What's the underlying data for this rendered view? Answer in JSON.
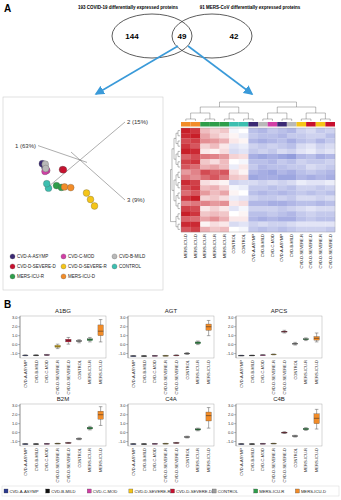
{
  "chart_data": [
    {
      "type": "venn",
      "panel": "A",
      "sets": [
        "193 COVID-19 differentially expressed proteins",
        "91 MERS-CoV differentially expressed proteins"
      ],
      "values": [
        144,
        49,
        42
      ]
    },
    {
      "type": "scatter3d",
      "axis_labels": [
        "1 (63%)",
        "2 (15%)",
        "3 (9%)"
      ],
      "xlim": [
        -0.2,
        1.2
      ],
      "ylim": [
        -0.7,
        1
      ],
      "zlim": [
        -0.2,
        1
      ],
      "tick_labels": false,
      "legend": "bottom",
      "series": [
        {
          "name": "CVD-A-ASYMP",
          "color": "#3b2a74",
          "x": [
            1.0,
            1.05
          ],
          "y": [
            -0.25,
            -0.22
          ],
          "z": [
            0.25,
            0.2
          ]
        },
        {
          "name": "CVD-C-MOD",
          "color": "#d23fa6",
          "x": [
            0.95,
            1.0
          ],
          "y": [
            -0.28,
            -0.3
          ],
          "z": [
            0.28,
            0.3
          ]
        },
        {
          "name": "CVD-B-MILD",
          "color": "#b9b9b9",
          "x": [
            1.02,
            0.98
          ],
          "y": [
            -0.2,
            -0.26
          ],
          "z": [
            0.22,
            0.26
          ]
        },
        {
          "name": "CVD-D-SEVERE-D",
          "color": "#c8102e",
          "x": [
            0.5,
            0.55
          ],
          "y": [
            -0.2,
            -0.18
          ],
          "z": [
            0.2,
            0.24
          ]
        },
        {
          "name": "CVD-D-SEVERE-R",
          "color": "#f5c518",
          "x": [
            0.2,
            0.1,
            0.15
          ],
          "y": [
            -0.3,
            -0.4,
            -0.35
          ],
          "z": [
            0.6,
            0.8,
            0.7
          ]
        },
        {
          "name": "CONTROL",
          "color": "#3cbfb0",
          "x": [
            0.9,
            0.95
          ],
          "y": [
            -0.5,
            -0.45
          ],
          "z": [
            0.5,
            0.45
          ]
        },
        {
          "name": "MERS-ICU-R",
          "color": "#2e9e4a",
          "x": [
            0.8,
            0.75
          ],
          "y": [
            -0.4,
            -0.38
          ],
          "z": [
            0.5,
            0.55
          ]
        },
        {
          "name": "MERS-ICU-D",
          "color": "#f28c28",
          "x": [
            0.7,
            0.65
          ],
          "y": [
            -0.35,
            -0.3
          ],
          "z": [
            0.55,
            0.6
          ]
        }
      ]
    },
    {
      "type": "heatmap",
      "tick_labels": "x",
      "zlim": [
        -2,
        2
      ],
      "categories": [
        "MERS-ICU-D",
        "MERS-ICU-D",
        "MERS-ICU-R",
        "MERS-ICU-R",
        "MERS-ICU-R",
        "CONTROL",
        "CONTROL",
        "CVD-A-ASYMP",
        "CVD-B-MILD",
        "CVD-C-MOD",
        "CVD-A-ASYMP",
        "CVD-B-MILD",
        "CVD-D-SEVERE-R",
        "CVD-D-SEVERE-D",
        "CVD-D-SEVERE-R",
        "CVD-D-SEVERE-D"
      ],
      "colors": [
        "#f28c28",
        "#f28c28",
        "#2e9e4a",
        "#2e9e4a",
        "#2e9e4a",
        "#3cbfb0",
        "#3cbfb0",
        "#3b2a74",
        "#b9b9b9",
        "#d23fa6",
        "#3b2a74",
        "#b9b9b9",
        "#f5c518",
        "#c8102e",
        "#f5c518",
        "#c8102e"
      ],
      "cells": [
        [
          2.0,
          1.8,
          0.6,
          0.4,
          0.5,
          -0.1,
          0.0,
          -0.7,
          -0.8,
          -0.6,
          -0.7,
          -0.8,
          -0.5,
          -0.4,
          -0.6,
          -0.5
        ],
        [
          1.9,
          2.0,
          0.8,
          0.5,
          0.3,
          0.1,
          -0.2,
          -0.6,
          -0.7,
          -0.7,
          -0.8,
          -0.6,
          -0.6,
          -0.5,
          -0.5,
          -0.7
        ],
        [
          1.6,
          1.7,
          1.0,
          0.9,
          0.7,
          0.2,
          0.1,
          -0.8,
          -0.9,
          -0.8,
          -0.7,
          -0.9,
          -0.7,
          -0.6,
          -0.8,
          -0.6
        ],
        [
          1.8,
          1.5,
          0.4,
          0.6,
          0.2,
          -0.3,
          -0.2,
          -0.5,
          -0.6,
          -0.5,
          -0.6,
          -0.7,
          -0.4,
          -0.3,
          -0.5,
          -0.4
        ],
        [
          2.0,
          1.9,
          0.2,
          0.1,
          0.3,
          -0.4,
          -0.3,
          -0.6,
          -0.5,
          -0.6,
          -0.4,
          -0.5,
          -0.3,
          -0.2,
          -0.4,
          -0.3
        ],
        [
          1.4,
          1.6,
          1.2,
          1.1,
          0.9,
          0.4,
          0.3,
          -0.9,
          -1.0,
          -0.9,
          -1.0,
          -1.1,
          -0.8,
          -0.7,
          -0.9,
          -0.8
        ],
        [
          1.7,
          1.8,
          0.5,
          0.3,
          0.6,
          0.0,
          -0.1,
          -0.7,
          -0.7,
          -0.8,
          -0.6,
          -0.7,
          -0.5,
          -0.6,
          -0.6,
          -0.5
        ],
        [
          1.5,
          1.3,
          0.7,
          0.8,
          0.6,
          -0.2,
          0.2,
          -0.6,
          -0.8,
          -0.7,
          -0.7,
          -0.6,
          -0.6,
          -0.4,
          -0.5,
          -0.6
        ],
        [
          0.9,
          1.1,
          1.6,
          1.4,
          1.5,
          0.3,
          0.1,
          -0.8,
          -0.9,
          -1.0,
          -0.8,
          -0.9,
          -0.7,
          -0.6,
          -0.7,
          -0.8
        ],
        [
          1.2,
          1.0,
          1.3,
          1.5,
          1.2,
          0.5,
          0.4,
          -1.0,
          -0.9,
          -0.9,
          -1.0,
          -1.0,
          -0.8,
          -0.9,
          -0.8,
          -0.9
        ],
        [
          1.9,
          1.7,
          0.3,
          0.2,
          0.1,
          -0.5,
          -0.4,
          -0.4,
          -0.5,
          -0.4,
          -0.5,
          -0.4,
          -0.2,
          -0.3,
          -0.3,
          -0.2
        ],
        [
          1.6,
          1.8,
          0.6,
          0.7,
          0.4,
          -0.1,
          -0.2,
          -0.6,
          -0.6,
          -0.7,
          -0.6,
          -0.7,
          -0.5,
          -0.5,
          -0.6,
          -0.5
        ],
        [
          1.3,
          1.5,
          0.9,
          0.6,
          0.8,
          0.1,
          0.0,
          -0.7,
          -0.8,
          -0.7,
          -0.8,
          -0.7,
          -0.6,
          -0.7,
          -0.6,
          -0.7
        ],
        [
          1.8,
          2.0,
          0.4,
          0.5,
          0.3,
          -0.2,
          -0.3,
          -0.5,
          -0.6,
          -0.6,
          -0.5,
          -0.6,
          -0.4,
          -0.4,
          -0.5,
          -0.4
        ],
        [
          1.1,
          1.2,
          1.1,
          0.9,
          1.0,
          0.2,
          0.3,
          -0.8,
          -0.8,
          -0.9,
          -0.9,
          -0.8,
          -0.7,
          -0.7,
          -0.8,
          -0.7
        ],
        [
          1.7,
          1.6,
          0.2,
          0.4,
          0.2,
          -0.3,
          -0.1,
          -0.5,
          -0.5,
          -0.5,
          -0.6,
          -0.5,
          -0.4,
          -0.3,
          -0.4,
          -0.4
        ],
        [
          2.0,
          1.8,
          0.5,
          0.6,
          0.5,
          0.0,
          0.1,
          -0.7,
          -0.7,
          -0.6,
          -0.7,
          -0.8,
          -0.6,
          -0.5,
          -0.6,
          -0.6
        ],
        [
          1.4,
          1.3,
          0.8,
          1.0,
          0.7,
          0.2,
          0.2,
          -0.8,
          -0.9,
          -0.8,
          -0.9,
          -0.9,
          -0.7,
          -0.6,
          -0.7,
          -0.7
        ],
        [
          1.9,
          1.9,
          0.1,
          0.3,
          0.2,
          -0.4,
          -0.3,
          -0.5,
          -0.4,
          -0.5,
          -0.5,
          -0.4,
          -0.3,
          -0.3,
          -0.3,
          -0.3
        ],
        [
          1.5,
          1.7,
          0.7,
          0.5,
          0.6,
          0.0,
          -0.1,
          -0.6,
          -0.7,
          -0.6,
          -0.7,
          -0.6,
          -0.5,
          -0.5,
          -0.5,
          -0.6
        ]
      ]
    },
    {
      "type": "box",
      "panel": "B",
      "title": "A1BG",
      "legend": "bottom",
      "categories": [
        "CVD-A-ASYMP",
        "CVD-B-MILD",
        "CVD-C-MOD",
        "CVD-D-SEVERE-R",
        "CVD-D-SEVERE-D",
        "CONTROL",
        "MERS-ICU-R",
        "MERS-ICU-D"
      ],
      "colors": [
        "#2b3a8f",
        "#111111",
        "#d23fa6",
        "#f5c518",
        "#c8102e",
        "#9e9e9e",
        "#2e9e4a",
        "#f28c28"
      ],
      "min": [
        -1.25,
        -1.24,
        -1.22,
        -0.45,
        0.05,
        0.2,
        0.3,
        0.3
      ],
      "q1": [
        -1.22,
        -1.21,
        -1.19,
        -0.3,
        0.3,
        0.32,
        0.45,
        1.0
      ],
      "median": [
        -1.2,
        -1.19,
        -1.16,
        -0.2,
        0.45,
        0.4,
        0.55,
        1.5
      ],
      "q3": [
        -1.18,
        -1.17,
        -1.13,
        -0.08,
        0.6,
        0.46,
        0.65,
        2.2
      ],
      "max": [
        -1.15,
        -1.14,
        -1.1,
        0.05,
        0.8,
        0.55,
        0.8,
        2.8
      ],
      "ylim": [
        -1.5,
        3.2
      ],
      "yticks": [
        {
          "value": -1,
          "label": "-1.0"
        },
        {
          "value": 0,
          "label": "0.0"
        },
        {
          "value": 1,
          "label": "1.0"
        },
        {
          "value": 2,
          "label": "2.0"
        },
        {
          "value": 3,
          "label": "3.0"
        }
      ]
    },
    {
      "type": "box",
      "title": "AGT",
      "categories": [
        "CVD-A-ASYMP",
        "CVD-B-MILD",
        "CVD-C-MOD",
        "CVD-D-SEVERE-R",
        "CVD-D-SEVERE-D",
        "CONTROL",
        "MERS-ICU-R",
        "MERS-ICU-D"
      ],
      "colors": [
        "#2b3a8f",
        "#111111",
        "#d23fa6",
        "#f5c518",
        "#c8102e",
        "#9e9e9e",
        "#2e9e4a",
        "#f28c28"
      ],
      "min": [
        -1.3,
        -1.3,
        -1.28,
        -1.27,
        -1.25,
        -1.1,
        0.0,
        1.0
      ],
      "q1": [
        -1.28,
        -1.28,
        -1.26,
        -1.25,
        -1.22,
        -1.05,
        0.1,
        1.6
      ],
      "median": [
        -1.27,
        -1.27,
        -1.25,
        -1.24,
        -1.2,
        -1.0,
        0.2,
        2.0
      ],
      "q3": [
        -1.26,
        -1.26,
        -1.24,
        -1.23,
        -1.18,
        -0.95,
        0.3,
        2.3
      ],
      "max": [
        -1.24,
        -1.24,
        -1.22,
        -1.21,
        -1.15,
        -0.9,
        0.4,
        2.7
      ],
      "ylim": [
        -1.5,
        3.2
      ],
      "yticks": [
        {
          "value": -1,
          "label": "-1.0"
        },
        {
          "value": 0,
          "label": "0.0"
        },
        {
          "value": 1,
          "label": "1.0"
        },
        {
          "value": 2,
          "label": "2.0"
        },
        {
          "value": 3,
          "label": "3.0"
        }
      ]
    },
    {
      "type": "box",
      "title": "APCS",
      "categories": [
        "CVD-A-ASYMP",
        "CVD-B-MILD",
        "CVD-C-MOD",
        "CVD-D-SEVERE-R",
        "CVD-D-SEVERE-D",
        "CONTROL",
        "MERS-ICU-R",
        "MERS-ICU-D"
      ],
      "colors": [
        "#2b3a8f",
        "#111111",
        "#d23fa6",
        "#f5c518",
        "#c8102e",
        "#9e9e9e",
        "#2e9e4a",
        "#f28c28"
      ],
      "min": [
        -1.25,
        -1.24,
        -1.2,
        -1.15,
        1.3,
        -0.05,
        0.45,
        0.3
      ],
      "q1": [
        -1.23,
        -1.22,
        -1.18,
        -1.12,
        1.4,
        0.05,
        0.55,
        0.5
      ],
      "median": [
        -1.22,
        -1.21,
        -1.17,
        -1.1,
        1.45,
        0.1,
        0.6,
        0.7
      ],
      "q3": [
        -1.21,
        -1.2,
        -1.16,
        -1.08,
        1.5,
        0.15,
        0.65,
        0.9
      ],
      "max": [
        -1.19,
        -1.18,
        -1.14,
        -1.05,
        1.6,
        0.25,
        0.75,
        1.3
      ],
      "ylim": [
        -1.5,
        3.2
      ],
      "yticks": [
        {
          "value": -1,
          "label": "-1.0"
        },
        {
          "value": 0,
          "label": "0.0"
        },
        {
          "value": 1,
          "label": "1.0"
        },
        {
          "value": 2,
          "label": "2.0"
        },
        {
          "value": 3,
          "label": "3.0"
        }
      ]
    },
    {
      "type": "box",
      "title": "B2M",
      "categories": [
        "CVD-A-ASYMP",
        "CVD-B-MILD",
        "CVD-C-MOD",
        "CVD-D-SEVERE-R",
        "CVD-D-SEVERE-D",
        "CONTROL",
        "MERS-ICU-R",
        "MERS-ICU-D"
      ],
      "colors": [
        "#2b3a8f",
        "#111111",
        "#d23fa6",
        "#f5c518",
        "#c8102e",
        "#9e9e9e",
        "#2e9e4a",
        "#f28c28"
      ],
      "min": [
        -1.3,
        -1.3,
        -1.28,
        -1.25,
        -1.2,
        -0.8,
        0.3,
        0.8
      ],
      "q1": [
        -1.28,
        -1.28,
        -1.26,
        -1.23,
        -1.17,
        -0.75,
        0.4,
        1.5
      ],
      "median": [
        -1.27,
        -1.27,
        -1.25,
        -1.22,
        -1.15,
        -0.7,
        0.5,
        2.0
      ],
      "q3": [
        -1.26,
        -1.26,
        -1.24,
        -1.21,
        -1.13,
        -0.65,
        0.6,
        2.4
      ],
      "max": [
        -1.24,
        -1.24,
        -1.22,
        -1.19,
        -1.1,
        -0.6,
        0.7,
        2.9
      ],
      "ylim": [
        -1.5,
        3.2
      ],
      "yticks": [
        {
          "value": -1,
          "label": "-1.0"
        },
        {
          "value": 0,
          "label": "0.0"
        },
        {
          "value": 1,
          "label": "1.0"
        },
        {
          "value": 2,
          "label": "2.0"
        },
        {
          "value": 3,
          "label": "3.0"
        }
      ]
    },
    {
      "type": "box",
      "title": "C4A",
      "categories": [
        "CVD-A-ASYMP",
        "CVD-B-MILD",
        "CVD-C-MOD",
        "CVD-D-SEVERE-R",
        "CVD-D-SEVERE-D",
        "CONTROL",
        "MERS-ICU-R",
        "MERS-ICU-D"
      ],
      "colors": [
        "#2b3a8f",
        "#111111",
        "#d23fa6",
        "#f5c518",
        "#c8102e",
        "#9e9e9e",
        "#2e9e4a",
        "#f28c28"
      ],
      "min": [
        -1.3,
        -1.3,
        -1.28,
        -1.26,
        -1.2,
        -0.6,
        0.2,
        0.5
      ],
      "q1": [
        -1.28,
        -1.28,
        -1.26,
        -1.24,
        -1.17,
        -0.55,
        0.28,
        1.3
      ],
      "median": [
        -1.27,
        -1.27,
        -1.25,
        -1.23,
        -1.15,
        -0.5,
        0.35,
        1.9
      ],
      "q3": [
        -1.26,
        -1.26,
        -1.24,
        -1.22,
        -1.13,
        -0.45,
        0.42,
        2.3
      ],
      "max": [
        -1.24,
        -1.24,
        -1.22,
        -1.2,
        -1.1,
        -0.4,
        0.5,
        2.8
      ],
      "ylim": [
        -1.5,
        3.2
      ],
      "yticks": [
        {
          "value": -1,
          "label": "-1.0"
        },
        {
          "value": 0,
          "label": "0.0"
        },
        {
          "value": 1,
          "label": "1.0"
        },
        {
          "value": 2,
          "label": "2.0"
        },
        {
          "value": 3,
          "label": "3.0"
        }
      ]
    },
    {
      "type": "box",
      "title": "C4B",
      "categories": [
        "CVD-A-ASYMP",
        "CVD-B-MILD",
        "CVD-C-MOD",
        "CVD-D-SEVERE-R",
        "CVD-D-SEVERE-D",
        "CONTROL",
        "MERS-ICU-R",
        "MERS-ICU-D"
      ],
      "colors": [
        "#2b3a8f",
        "#111111",
        "#d23fa6",
        "#f5c518",
        "#c8102e",
        "#9e9e9e",
        "#2e9e4a",
        "#f28c28"
      ],
      "min": [
        -1.3,
        -1.3,
        -1.27,
        -1.25,
        -0.1,
        -0.5,
        0.25,
        0.4
      ],
      "q1": [
        -1.28,
        -1.28,
        -1.25,
        -1.23,
        -0.05,
        -0.45,
        0.32,
        1.0
      ],
      "median": [
        -1.27,
        -1.27,
        -1.24,
        -1.22,
        0.0,
        -0.4,
        0.4,
        1.6
      ],
      "q3": [
        -1.26,
        -1.26,
        -1.23,
        -1.21,
        0.05,
        -0.35,
        0.48,
        2.1
      ],
      "max": [
        -1.24,
        -1.24,
        -1.21,
        -1.19,
        0.1,
        -0.3,
        0.55,
        2.6
      ],
      "ylim": [
        -1.5,
        3.2
      ],
      "yticks": [
        {
          "value": -1,
          "label": "-1.0"
        },
        {
          "value": 0,
          "label": "0.0"
        },
        {
          "value": 1,
          "label": "1.0"
        },
        {
          "value": 2,
          "label": "2.0"
        },
        {
          "value": 3,
          "label": "3.0"
        }
      ]
    }
  ]
}
